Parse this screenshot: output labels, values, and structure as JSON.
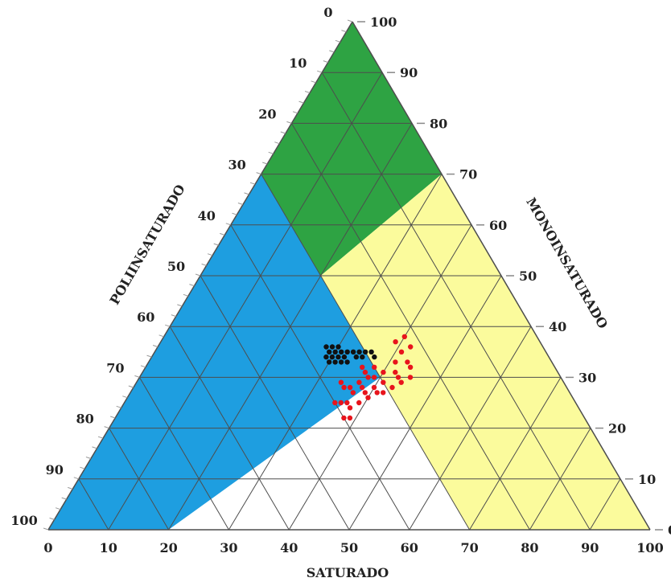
{
  "chart_data": {
    "type": "scatter",
    "subtype": "ternary",
    "axes": {
      "bottom": {
        "label": "SATURADO",
        "ticks": [
          "0",
          "10",
          "20",
          "30",
          "40",
          "50",
          "60",
          "70",
          "80",
          "90",
          "100"
        ]
      },
      "right": {
        "label": "MONOINSATURADO",
        "ticks": [
          "0",
          "10",
          "20",
          "30",
          "40",
          "50",
          "60",
          "70",
          "80",
          "90",
          "100"
        ]
      },
      "left": {
        "label": "POLIINSATURADO",
        "ticks": [
          "0",
          "10",
          "20",
          "30",
          "40",
          "50",
          "60",
          "70",
          "80",
          "90",
          "100"
        ]
      }
    },
    "grid": true,
    "grid_step": 10,
    "regions": [
      {
        "color": "#2ea343",
        "vertices": [
          [
            0,
            100,
            0
          ],
          [
            0,
            70,
            30
          ],
          [
            20,
            50,
            30
          ],
          [
            30,
            70,
            0
          ]
        ]
      },
      {
        "color": "#1e9ee0",
        "vertices": [
          [
            0,
            70,
            30
          ],
          [
            0,
            0,
            100
          ],
          [
            20,
            0,
            80
          ],
          [
            40,
            30,
            30
          ],
          [
            20,
            50,
            30
          ]
        ]
      },
      {
        "color": "#fbfb9c",
        "vertices": [
          [
            30,
            70,
            0
          ],
          [
            20,
            50,
            30
          ],
          [
            40,
            30,
            30
          ],
          [
            70,
            0,
            30
          ],
          [
            100,
            0,
            0
          ]
        ]
      },
      {
        "color": "#ffffff",
        "vertices": [
          [
            20,
            0,
            80
          ],
          [
            70,
            0,
            30
          ],
          [
            40,
            30,
            30
          ]
        ]
      }
    ],
    "series": [
      {
        "color": "#111111",
        "points": [
          [
            28,
            36,
            36
          ],
          [
            29,
            35,
            36
          ],
          [
            29,
            36,
            35
          ],
          [
            30,
            35,
            35
          ],
          [
            30,
            36,
            34
          ],
          [
            31,
            34,
            35
          ],
          [
            31,
            35,
            34
          ],
          [
            32,
            35,
            33
          ],
          [
            33,
            35,
            32
          ],
          [
            34,
            35,
            31
          ],
          [
            35,
            35,
            30
          ],
          [
            36,
            35,
            29
          ],
          [
            30,
            34,
            36
          ],
          [
            31,
            33,
            36
          ],
          [
            32,
            33,
            35
          ],
          [
            33,
            33,
            34
          ],
          [
            34,
            34,
            32
          ],
          [
            35,
            34,
            31
          ],
          [
            37,
            34,
            29
          ],
          [
            29,
            34,
            37
          ],
          [
            30,
            33,
            37
          ],
          [
            32,
            34,
            34
          ]
        ]
      },
      {
        "color": "#e8141c",
        "points": [
          [
            34,
            29,
            37
          ],
          [
            35,
            28,
            37
          ],
          [
            36,
            28,
            36
          ],
          [
            37,
            29,
            34
          ],
          [
            38,
            30,
            32
          ],
          [
            40,
            31,
            29
          ],
          [
            41,
            33,
            26
          ],
          [
            41,
            35,
            24
          ],
          [
            43,
            33,
            24
          ],
          [
            42,
            31,
            27
          ],
          [
            43,
            30,
            27
          ],
          [
            44,
            29,
            27
          ],
          [
            45,
            30,
            25
          ],
          [
            44,
            32,
            24
          ],
          [
            41,
            29,
            30
          ],
          [
            41,
            27,
            32
          ],
          [
            40,
            26,
            34
          ],
          [
            39,
            25,
            36
          ],
          [
            38,
            24,
            38
          ],
          [
            37,
            25,
            38
          ],
          [
            36,
            25,
            39
          ],
          [
            39,
            27,
            34
          ],
          [
            37,
            27,
            36
          ],
          [
            35,
            25,
            40
          ],
          [
            38,
            22,
            40
          ],
          [
            39,
            22,
            39
          ],
          [
            38,
            32,
            30
          ],
          [
            42,
            36,
            22
          ],
          [
            40,
            38,
            22
          ],
          [
            39,
            37,
            24
          ],
          [
            39,
            30,
            31
          ],
          [
            38,
            28,
            34
          ],
          [
            36,
            32,
            32
          ],
          [
            37,
            31,
            32
          ],
          [
            40,
            28,
            32
          ],
          [
            43,
            28,
            29
          ],
          [
            42,
            27,
            31
          ]
        ]
      }
    ]
  }
}
